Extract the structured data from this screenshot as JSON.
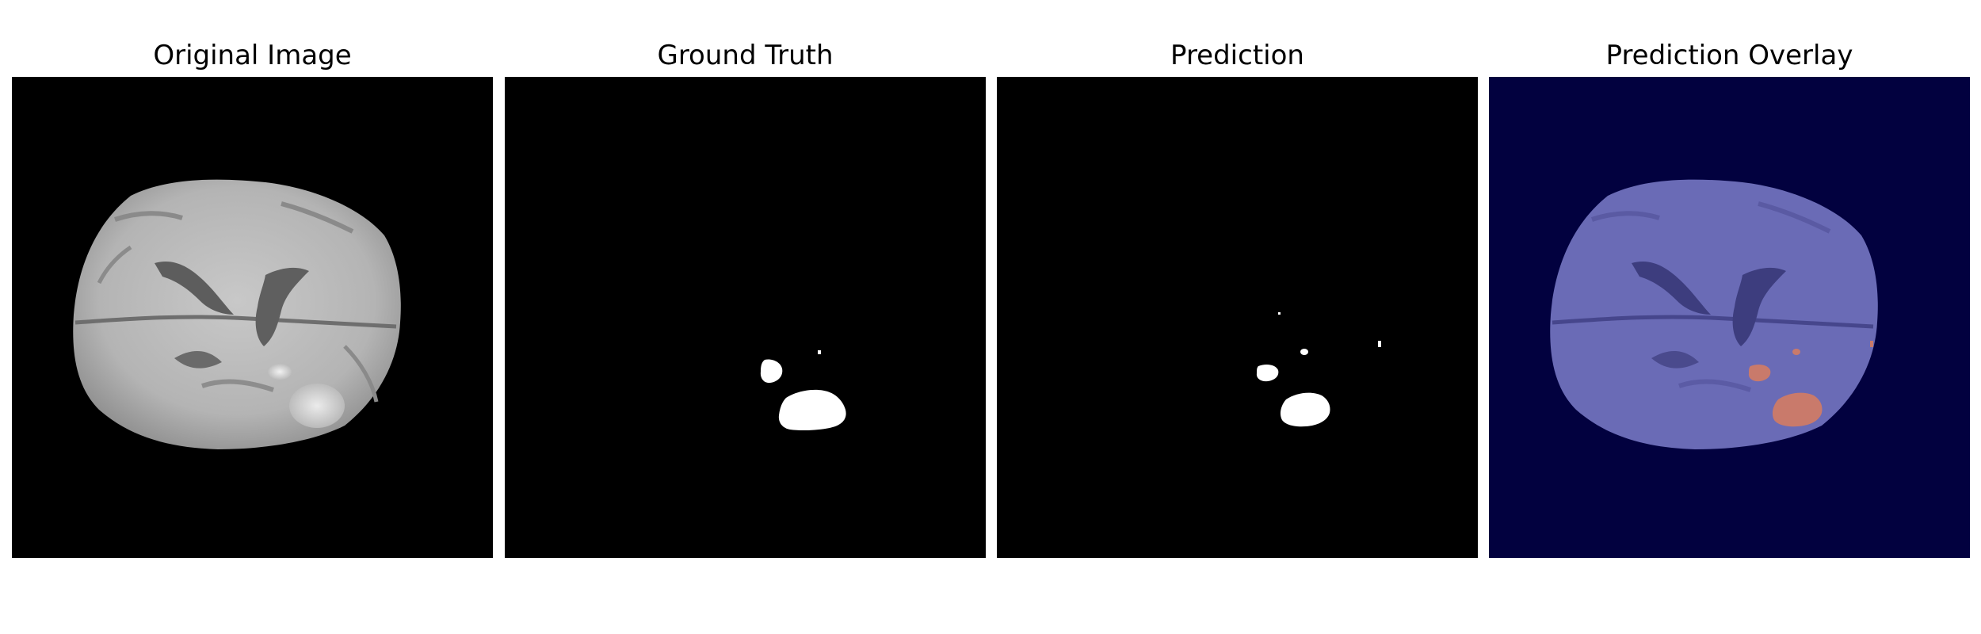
{
  "panels": [
    {
      "title": "Original Image"
    },
    {
      "title": "Ground Truth"
    },
    {
      "title": "Prediction"
    },
    {
      "title": "Prediction Overlay"
    }
  ],
  "colors": {
    "mask_background": "#000000",
    "mask_foreground": "#ffffff",
    "overlay_background": "#02013f",
    "overlay_brain": "#6a6bb6",
    "overlay_prediction": "#c97a6b"
  }
}
